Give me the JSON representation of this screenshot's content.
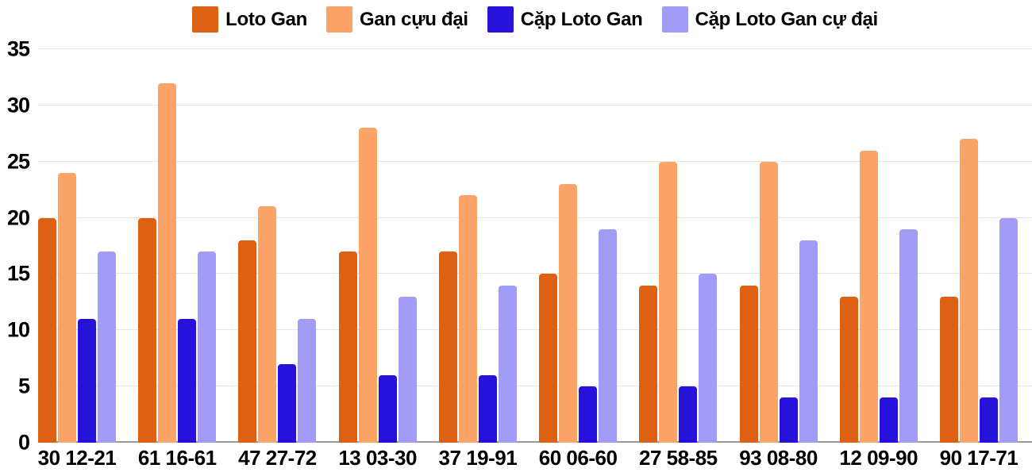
{
  "chart_data": {
    "type": "bar",
    "title": "",
    "categories": [
      "30 12-21",
      "61 16-61",
      "47 27-72",
      "13 03-30",
      "37 19-91",
      "60 06-60",
      "27 58-85",
      "93 08-80",
      "12 09-90",
      "90 17-71"
    ],
    "series": [
      {
        "key": "loto-gan",
        "name": "Loto Gan",
        "color": "#DD6013",
        "values": [
          20,
          20,
          18,
          17,
          17,
          15,
          14,
          14,
          13,
          13
        ]
      },
      {
        "key": "gan-cuu-dai",
        "name": "Gan cựu đại",
        "color": "#FCA467",
        "values": [
          24,
          32,
          21,
          28,
          22,
          23,
          25,
          25,
          26,
          27
        ]
      },
      {
        "key": "cap-loto-gan",
        "name": "Cặp Loto Gan",
        "color": "#2712DB",
        "values": [
          11,
          11,
          7,
          6,
          6,
          5,
          5,
          4,
          4,
          4
        ]
      },
      {
        "key": "cap-loto-gan-cu-dai",
        "name": "Cặp Loto Gan cự đại",
        "color": "#A29BF8",
        "values": [
          17,
          17,
          11,
          13,
          14,
          19,
          15,
          18,
          19,
          20
        ]
      }
    ],
    "xlabel": "",
    "ylabel": "",
    "ylim": [
      0,
      35
    ],
    "yticks": [
      0,
      5,
      10,
      15,
      20,
      25,
      30,
      35
    ],
    "grid": true,
    "legend_position": "top"
  },
  "colors": {
    "background": "#ffffff",
    "gridline": "#e6e6e6",
    "axis_line": "#9b9b9b",
    "label": "#000000"
  }
}
